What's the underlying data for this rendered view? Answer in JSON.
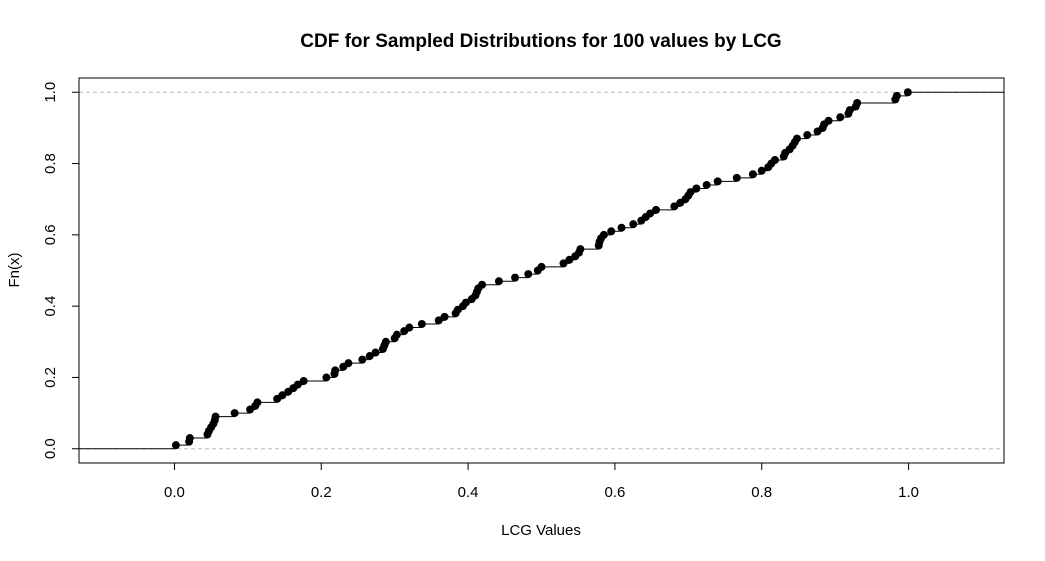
{
  "chart_data": {
    "type": "scatter",
    "subtype": "ecdf-step",
    "title": "CDF for Sampled Distributions for 100 values by LCG",
    "xlabel": "LCG Values",
    "ylabel": "Fn(x)",
    "xlim": [
      -0.13,
      1.13
    ],
    "ylim": [
      -0.04,
      1.04
    ],
    "x_ticks": [
      0.0,
      0.2,
      0.4,
      0.6,
      0.8,
      1.0
    ],
    "x_tick_labels": [
      "0.0",
      "0.2",
      "0.4",
      "0.6",
      "0.8",
      "1.0"
    ],
    "y_ticks": [
      0.0,
      0.2,
      0.4,
      0.6,
      0.8,
      1.0
    ],
    "y_tick_labels": [
      "0.0",
      "0.2",
      "0.4",
      "0.6",
      "0.8",
      "1.0"
    ],
    "reference_lines_y": [
      0.0,
      1.0
    ],
    "grid": false,
    "legend": "none",
    "colors": {
      "points": "#000000",
      "step": "#000000",
      "reference": "#bbbbbb"
    },
    "x": [
      0.002,
      0.02,
      0.021,
      0.045,
      0.047,
      0.05,
      0.053,
      0.055,
      0.056,
      0.082,
      0.103,
      0.11,
      0.113,
      0.14,
      0.147,
      0.155,
      0.162,
      0.168,
      0.176,
      0.207,
      0.218,
      0.219,
      0.23,
      0.237,
      0.256,
      0.266,
      0.274,
      0.284,
      0.286,
      0.288,
      0.3,
      0.303,
      0.313,
      0.32,
      0.337,
      0.36,
      0.368,
      0.383,
      0.386,
      0.393,
      0.397,
      0.405,
      0.41,
      0.412,
      0.414,
      0.419,
      0.442,
      0.464,
      0.482,
      0.495,
      0.5,
      0.53,
      0.538,
      0.546,
      0.551,
      0.553,
      0.578,
      0.579,
      0.581,
      0.585,
      0.595,
      0.609,
      0.625,
      0.636,
      0.642,
      0.648,
      0.656,
      0.681,
      0.689,
      0.696,
      0.7,
      0.703,
      0.711,
      0.725,
      0.74,
      0.766,
      0.788,
      0.8,
      0.809,
      0.813,
      0.818,
      0.83,
      0.832,
      0.838,
      0.842,
      0.845,
      0.848,
      0.862,
      0.876,
      0.883,
      0.885,
      0.891,
      0.907,
      0.918,
      0.92,
      0.928,
      0.93,
      0.982,
      0.984,
      0.999
    ],
    "y": [
      0.01,
      0.02,
      0.03,
      0.04,
      0.05,
      0.06,
      0.07,
      0.08,
      0.09,
      0.1,
      0.11,
      0.12,
      0.13,
      0.14,
      0.15,
      0.16,
      0.17,
      0.18,
      0.19,
      0.2,
      0.21,
      0.22,
      0.23,
      0.24,
      0.25,
      0.26,
      0.27,
      0.28,
      0.29,
      0.3,
      0.31,
      0.32,
      0.33,
      0.34,
      0.35,
      0.36,
      0.37,
      0.38,
      0.39,
      0.4,
      0.41,
      0.42,
      0.43,
      0.44,
      0.45,
      0.46,
      0.47,
      0.48,
      0.49,
      0.5,
      0.51,
      0.52,
      0.53,
      0.54,
      0.55,
      0.56,
      0.57,
      0.58,
      0.59,
      0.6,
      0.61,
      0.62,
      0.63,
      0.64,
      0.65,
      0.66,
      0.67,
      0.68,
      0.69,
      0.7,
      0.71,
      0.72,
      0.73,
      0.74,
      0.75,
      0.76,
      0.77,
      0.78,
      0.79,
      0.8,
      0.81,
      0.82,
      0.83,
      0.84,
      0.85,
      0.86,
      0.87,
      0.88,
      0.89,
      0.9,
      0.91,
      0.92,
      0.93,
      0.94,
      0.95,
      0.96,
      0.97,
      0.98,
      0.99,
      1.0
    ]
  }
}
